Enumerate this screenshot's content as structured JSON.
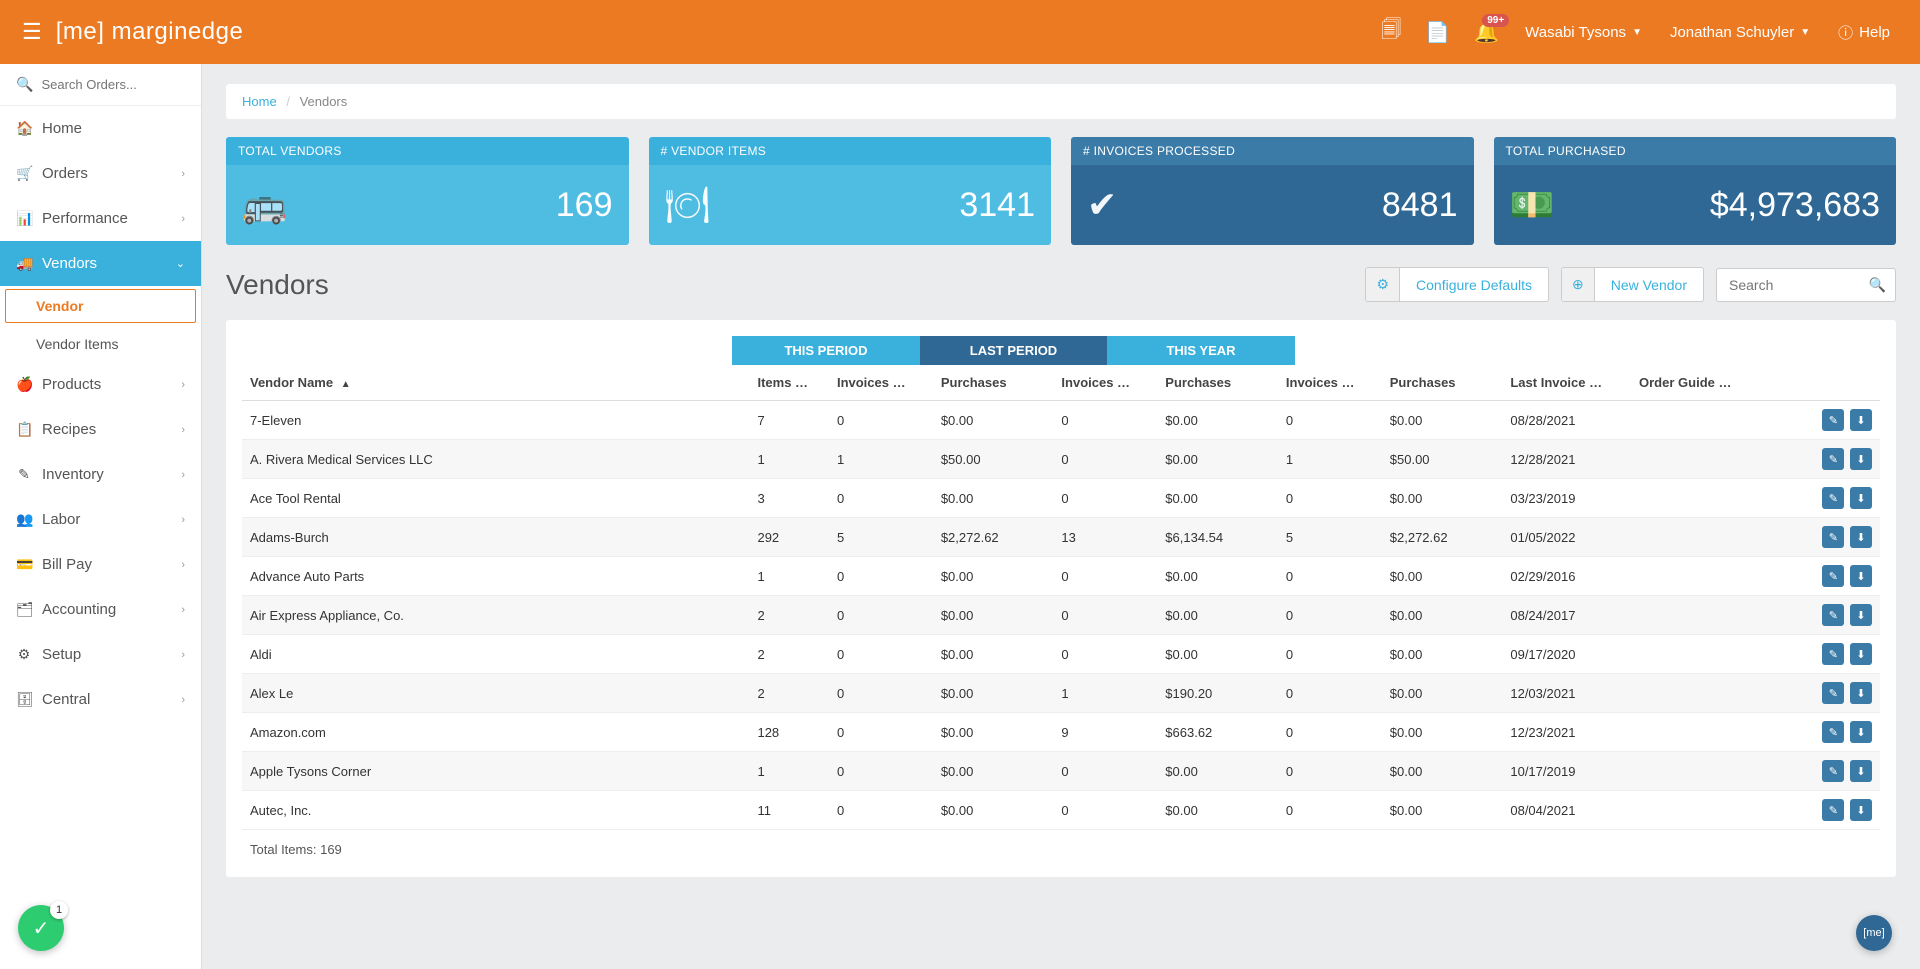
{
  "brand": {
    "bracket": "[me]",
    "name": "marginedge"
  },
  "header": {
    "notification_badge": "99+",
    "restaurant": "Wasabi Tysons",
    "user": "Jonathan Schuyler",
    "help": "Help"
  },
  "sidebar": {
    "search_placeholder": "Search Orders...",
    "items": [
      {
        "icon": "🏠",
        "label": "Home",
        "chev": false
      },
      {
        "icon": "🛒",
        "label": "Orders",
        "chev": true
      },
      {
        "icon": "📊",
        "label": "Performance",
        "chev": true
      },
      {
        "icon": "🚚",
        "label": "Vendors",
        "chev": true,
        "active": true
      },
      {
        "icon": "🍎",
        "label": "Products",
        "chev": true
      },
      {
        "icon": "📋",
        "label": "Recipes",
        "chev": true
      },
      {
        "icon": "✎",
        "label": "Inventory",
        "chev": true
      },
      {
        "icon": "👥",
        "label": "Labor",
        "chev": true
      },
      {
        "icon": "💳",
        "label": "Bill Pay",
        "chev": true
      },
      {
        "icon": "🗂",
        "label": "Accounting",
        "chev": true
      },
      {
        "icon": "⚙",
        "label": "Setup",
        "chev": true
      },
      {
        "icon": "🗄",
        "label": "Central",
        "chev": true
      }
    ],
    "vendor_sub": [
      {
        "label": "Vendor",
        "active": true
      },
      {
        "label": "Vendor Items",
        "active": false
      }
    ]
  },
  "breadcrumb": {
    "home": "Home",
    "current": "Vendors"
  },
  "stats": [
    {
      "label": "TOTAL VENDORS",
      "value": "169",
      "icon": "🚌",
      "tone": "light"
    },
    {
      "label": "# VENDOR ITEMS",
      "value": "3141",
      "icon": "🍽",
      "tone": "light"
    },
    {
      "label": "# INVOICES PROCESSED",
      "value": "8481",
      "icon": "✔",
      "tone": "dark"
    },
    {
      "label": "TOTAL PURCHASED",
      "value": "$4,973,683",
      "icon": "💵",
      "tone": "dark"
    }
  ],
  "page": {
    "title": "Vendors",
    "configure": "Configure Defaults",
    "new_vendor": "New Vendor",
    "search_placeholder": "Search"
  },
  "periods": {
    "this": "THIS PERIOD",
    "last": "LAST PERIOD",
    "year": "THIS YEAR"
  },
  "columns": {
    "name": "Vendor Name",
    "items": "Items …",
    "inv1": "Invoices …",
    "pur1": "Purchases",
    "inv2": "Invoices …",
    "pur2": "Purchases",
    "inv3": "Invoices …",
    "pur3": "Purchases",
    "last_date": "Last Invoice …",
    "order_guide": "Order Guide …"
  },
  "rows": [
    {
      "name": "7-Eleven",
      "items": "7",
      "i1": "0",
      "p1": "$0.00",
      "i2": "0",
      "p2": "$0.00",
      "i3": "0",
      "p3": "$0.00",
      "date": "08/28/2021"
    },
    {
      "name": "A. Rivera Medical Services LLC",
      "items": "1",
      "i1": "1",
      "p1": "$50.00",
      "i2": "0",
      "p2": "$0.00",
      "i3": "1",
      "p3": "$50.00",
      "date": "12/28/2021"
    },
    {
      "name": "Ace Tool Rental",
      "items": "3",
      "i1": "0",
      "p1": "$0.00",
      "i2": "0",
      "p2": "$0.00",
      "i3": "0",
      "p3": "$0.00",
      "date": "03/23/2019"
    },
    {
      "name": "Adams-Burch",
      "items": "292",
      "i1": "5",
      "p1": "$2,272.62",
      "i2": "13",
      "p2": "$6,134.54",
      "i3": "5",
      "p3": "$2,272.62",
      "date": "01/05/2022"
    },
    {
      "name": "Advance Auto Parts",
      "items": "1",
      "i1": "0",
      "p1": "$0.00",
      "i2": "0",
      "p2": "$0.00",
      "i3": "0",
      "p3": "$0.00",
      "date": "02/29/2016"
    },
    {
      "name": "Air Express Appliance, Co.",
      "items": "2",
      "i1": "0",
      "p1": "$0.00",
      "i2": "0",
      "p2": "$0.00",
      "i3": "0",
      "p3": "$0.00",
      "date": "08/24/2017"
    },
    {
      "name": "Aldi",
      "items": "2",
      "i1": "0",
      "p1": "$0.00",
      "i2": "0",
      "p2": "$0.00",
      "i3": "0",
      "p3": "$0.00",
      "date": "09/17/2020"
    },
    {
      "name": "Alex Le",
      "items": "2",
      "i1": "0",
      "p1": "$0.00",
      "i2": "1",
      "p2": "$190.20",
      "i3": "0",
      "p3": "$0.00",
      "date": "12/03/2021"
    },
    {
      "name": "Amazon.com",
      "items": "128",
      "i1": "0",
      "p1": "$0.00",
      "i2": "9",
      "p2": "$663.62",
      "i3": "0",
      "p3": "$0.00",
      "date": "12/23/2021"
    },
    {
      "name": "Apple Tysons Corner",
      "items": "1",
      "i1": "0",
      "p1": "$0.00",
      "i2": "0",
      "p2": "$0.00",
      "i3": "0",
      "p3": "$0.00",
      "date": "10/17/2019"
    },
    {
      "name": "Autec, Inc.",
      "items": "11",
      "i1": "0",
      "p1": "$0.00",
      "i2": "0",
      "p2": "$0.00",
      "i3": "0",
      "p3": "$0.00",
      "date": "08/04/2021"
    }
  ],
  "total_items_label": "Total Items:",
  "total_items_value": "169",
  "fab_count": "1",
  "fab_me": "[me]",
  "colors": {
    "orange": "#ec7a22",
    "blue_light": "#3ab1dc",
    "blue_dark": "#2f6894"
  }
}
